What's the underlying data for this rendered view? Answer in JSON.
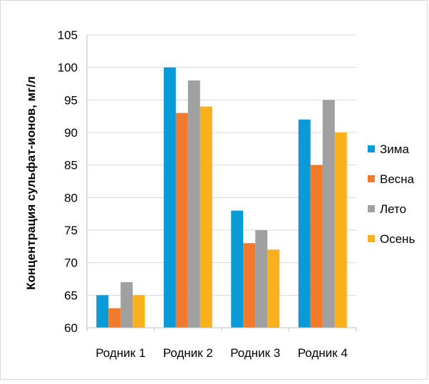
{
  "chart_data": {
    "type": "bar",
    "title": "",
    "xlabel": "",
    "ylabel": "Концентрация сульфат-ионов, мг/л",
    "categories": [
      "Родник 1",
      "Родник 2",
      "Родник 3",
      "Родник 4"
    ],
    "series": [
      {
        "name": "Зима",
        "color": "#0a9ad8",
        "values": [
          65,
          100,
          78,
          92
        ]
      },
      {
        "name": "Весна",
        "color": "#f27b2b",
        "values": [
          63,
          93,
          73,
          85
        ]
      },
      {
        "name": "Лето",
        "color": "#a0a0a0",
        "values": [
          67,
          98,
          75,
          95
        ]
      },
      {
        "name": "Осень",
        "color": "#f8b01d",
        "values": [
          65,
          94,
          72,
          90
        ]
      }
    ],
    "ylim": [
      60,
      105
    ],
    "yticks": [
      60,
      65,
      70,
      75,
      80,
      85,
      90,
      95,
      100,
      105
    ],
    "grid": true,
    "legend_position": "right"
  }
}
